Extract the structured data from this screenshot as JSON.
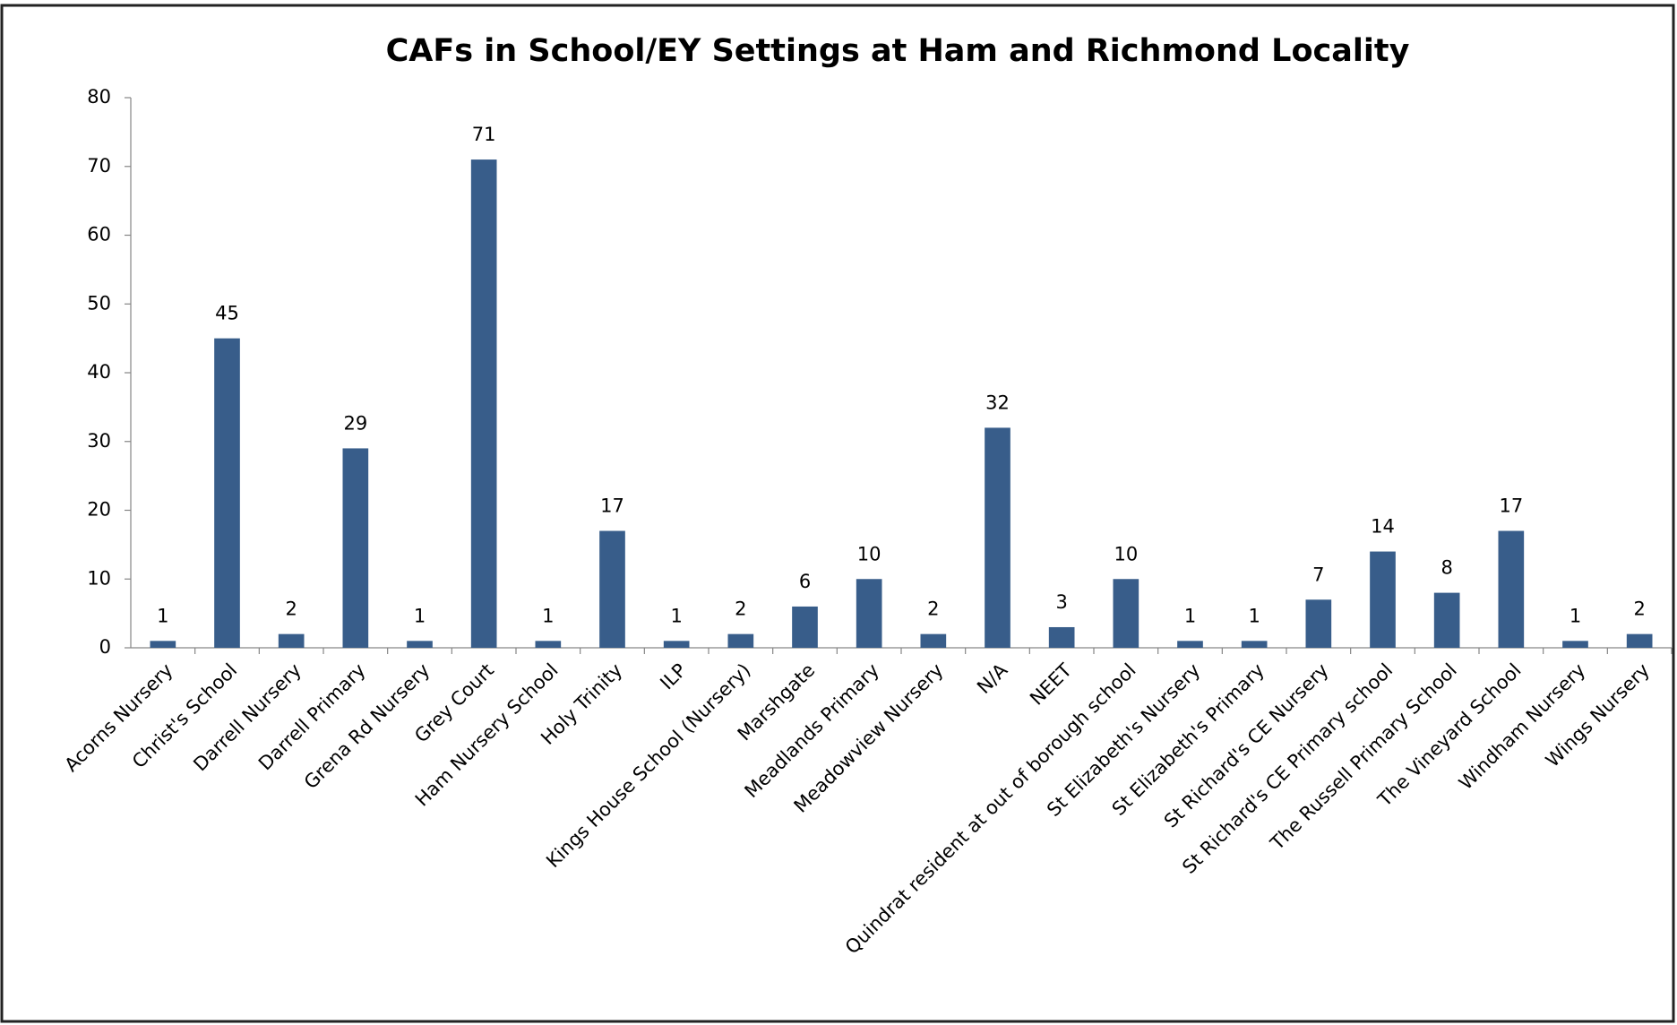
{
  "chart_data": {
    "type": "bar",
    "title": "CAFs in School/EY Settings at Ham and Richmond Locality",
    "categories": [
      "Acorns Nursery",
      "Christ's School",
      "Darrell Nursery",
      "Darrell Primary",
      "Grena Rd Nursery",
      "Grey Court",
      "Ham Nursery School",
      "Holy Trinity",
      "ILP",
      "Kings House School (Nursery)",
      "Marshgate",
      "Meadlands Primary",
      "Meadowview Nursery",
      "N/A",
      "NEET",
      "Quindrat resident at out of borough school",
      "St Elizabeth's Nursery",
      "St Elizabeth's Primary",
      "St Richard's CE Nursery",
      "St Richard's CE Primary school",
      "The Russell Primary School",
      "The Vineyard School",
      "Windham Nursery",
      "Wings Nursery"
    ],
    "values": [
      1,
      45,
      2,
      29,
      1,
      71,
      1,
      17,
      1,
      2,
      6,
      10,
      2,
      32,
      3,
      10,
      1,
      1,
      7,
      14,
      8,
      17,
      1,
      2
    ],
    "color": "#385d8a",
    "ylim": [
      0,
      80
    ],
    "yticks": [
      0,
      10,
      20,
      30,
      40,
      50,
      60,
      70,
      80
    ],
    "grid": false
  }
}
